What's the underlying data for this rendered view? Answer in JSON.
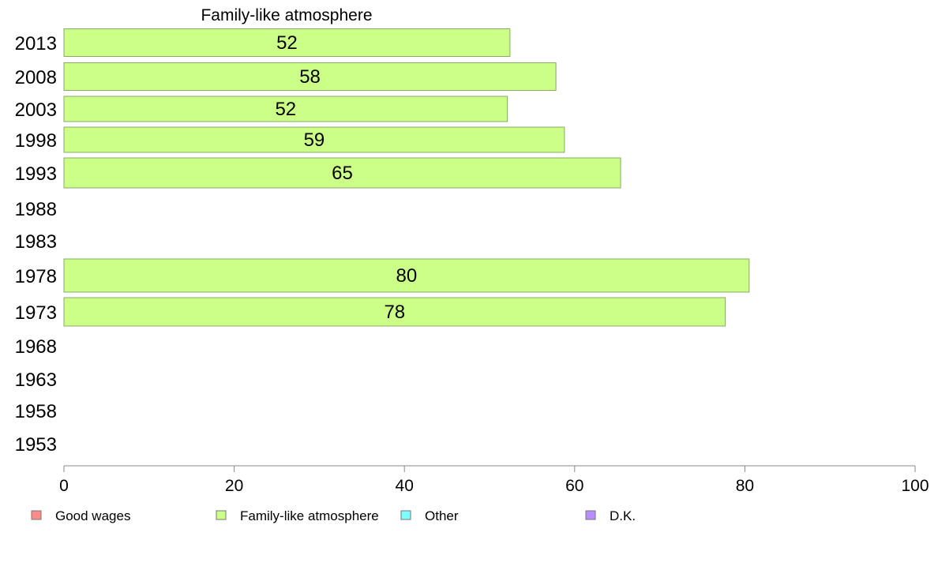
{
  "chart_data": {
    "type": "bar",
    "orientation": "horizontal",
    "title": "Family-like atmosphere",
    "xlabel": "",
    "ylabel": "",
    "categories": [
      "2013",
      "2008",
      "2003",
      "1998",
      "1993",
      "1988",
      "1983",
      "1978",
      "1973",
      "1968",
      "1963",
      "1958",
      "1953"
    ],
    "series": [
      {
        "name": "Family-like atmosphere",
        "values": [
          52.4,
          57.8,
          52.1,
          58.8,
          65.4,
          null,
          null,
          80.5,
          77.7,
          null,
          null,
          null,
          null
        ],
        "labels": [
          "52",
          "58",
          "52",
          "59",
          "65",
          "",
          "",
          "80",
          "78",
          "",
          "",
          "",
          ""
        ],
        "color": "#ccff88"
      }
    ],
    "xlim": [
      0,
      100
    ],
    "xticks": [
      "0",
      "20",
      "40",
      "60",
      "80",
      "100"
    ],
    "grid": false,
    "legend": {
      "position": "bottom",
      "items": [
        {
          "label": "Good wages",
          "color": "#ff8a8a"
        },
        {
          "label": "Family-like atmosphere",
          "color": "#ccff88"
        },
        {
          "label": "Other",
          "color": "#80ffff"
        },
        {
          "label": "D.K.",
          "color": "#b98cff"
        }
      ]
    }
  }
}
